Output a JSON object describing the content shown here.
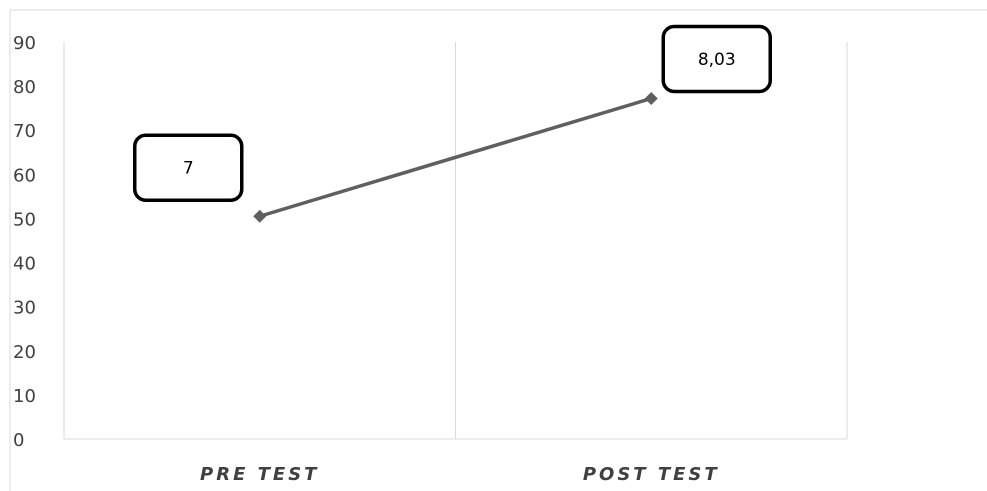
{
  "chart_data": {
    "type": "line",
    "categories": [
      "PRE TEST",
      "POST TEST"
    ],
    "series": [
      {
        "values": [
          50.5,
          77.2
        ]
      }
    ],
    "data_labels": [
      "7",
      "8,03"
    ],
    "ylim": [
      0,
      90
    ],
    "yticks": [
      0,
      10,
      20,
      30,
      40,
      50,
      60,
      70,
      80,
      90
    ],
    "grid": "vertical category separators",
    "colors": {
      "line": "#5f5f5f",
      "marker": "#5f5f5f",
      "axis": "#d9d9d9",
      "gridline": "#d9d9d9",
      "text": "#404040",
      "callout_border": "#000000"
    }
  }
}
